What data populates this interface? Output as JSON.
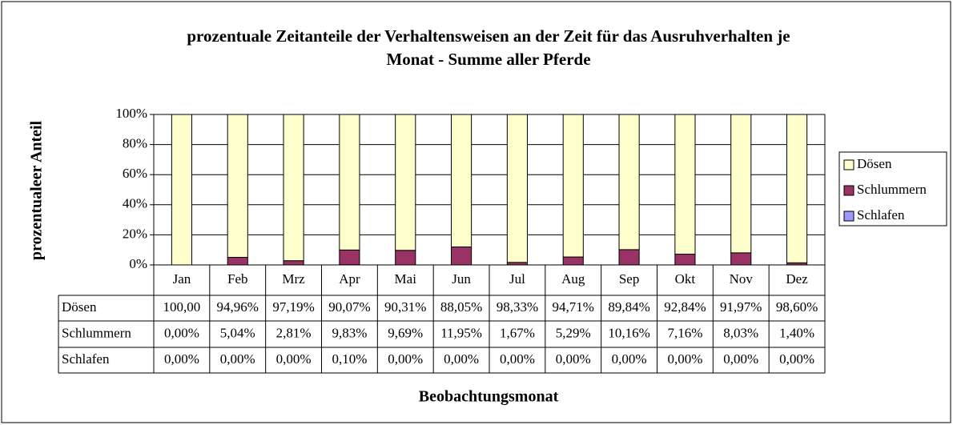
{
  "chart_data": {
    "type": "stacked_bar",
    "title": "prozentuale Zeitanteile der Verhaltensweisen an der Zeit für das Ausruhverhalten je Monat - Summe aller Pferde",
    "y_label": "prozentualeer Anteil",
    "x_label": "Beobachtungsmonat",
    "categories": [
      "Jan",
      "Feb",
      "Mrz",
      "Apr",
      "Mai",
      "Jun",
      "Jul",
      "Aug",
      "Sep",
      "Okt",
      "Nov",
      "Dez"
    ],
    "series": [
      {
        "name": "Dösen",
        "color": "#ffffcc",
        "values": [
          100,
          94.96,
          97.19,
          90.07,
          90.31,
          88.05,
          98.33,
          94.71,
          89.84,
          92.84,
          91.97,
          98.6
        ],
        "value_labels": [
          "100,00",
          "94,96%",
          "97,19%",
          "90,07%",
          "90,31%",
          "88,05%",
          "98,33%",
          "94,71%",
          "89,84%",
          "92,84%",
          "91,97%",
          "98,60%"
        ]
      },
      {
        "name": "Schlummern",
        "color": "#993366",
        "values": [
          0,
          5.04,
          2.81,
          9.83,
          9.69,
          11.95,
          1.67,
          5.29,
          10.16,
          7.16,
          8.03,
          1.4
        ],
        "value_labels": [
          "0,00%",
          "5,04%",
          "2,81%",
          "9,83%",
          "9,69%",
          "11,95%",
          "1,67%",
          "5,29%",
          "10,16%",
          "7,16%",
          "8,03%",
          "1,40%"
        ]
      },
      {
        "name": "Schlafen",
        "color": "#9999ff",
        "values": [
          0,
          0,
          0,
          0.1,
          0,
          0,
          0,
          0,
          0,
          0,
          0,
          0
        ],
        "value_labels": [
          "0,00%",
          "0,00%",
          "0,00%",
          "0,10%",
          "0,00%",
          "0,00%",
          "0,00%",
          "0,00%",
          "0,00%",
          "0,00%",
          "0,00%",
          "0,00%"
        ]
      }
    ],
    "ylim": [
      0,
      100
    ],
    "yticks": [
      {
        "value": 0,
        "label": "0%"
      },
      {
        "value": 20,
        "label": "20%"
      },
      {
        "value": 40,
        "label": "40%"
      },
      {
        "value": 60,
        "label": "60%"
      },
      {
        "value": 80,
        "label": "80%"
      },
      {
        "value": 100,
        "label": "100%"
      }
    ],
    "grid": true,
    "legend": "right"
  }
}
